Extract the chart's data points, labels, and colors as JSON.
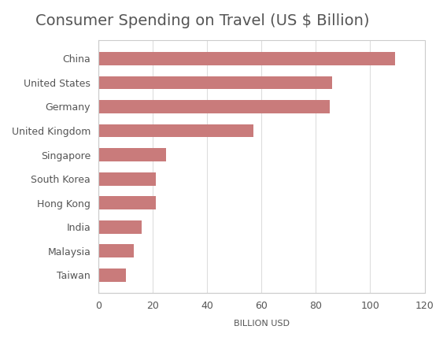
{
  "title": "Consumer Spending on Travel (US $ Billion)",
  "countries": [
    "China",
    "United States",
    "Germany",
    "United Kingdom",
    "Singapore",
    "South Korea",
    "Hong Kong",
    "India",
    "Malaysia",
    "Taiwan"
  ],
  "values": [
    109,
    86,
    85,
    57,
    25,
    21,
    21,
    16,
    13,
    10
  ],
  "bar_color": "#c97b7b",
  "xlabel": "BILLION USD",
  "xlim": [
    0,
    120
  ],
  "xticks": [
    0,
    20,
    40,
    60,
    80,
    100,
    120
  ],
  "background_color": "#ffffff",
  "plot_bg_color": "#ffffff",
  "title_fontsize": 14,
  "title_color": "#555555",
  "label_color": "#555555",
  "xlabel_fontsize": 8,
  "tick_fontsize": 9,
  "bar_height": 0.55
}
